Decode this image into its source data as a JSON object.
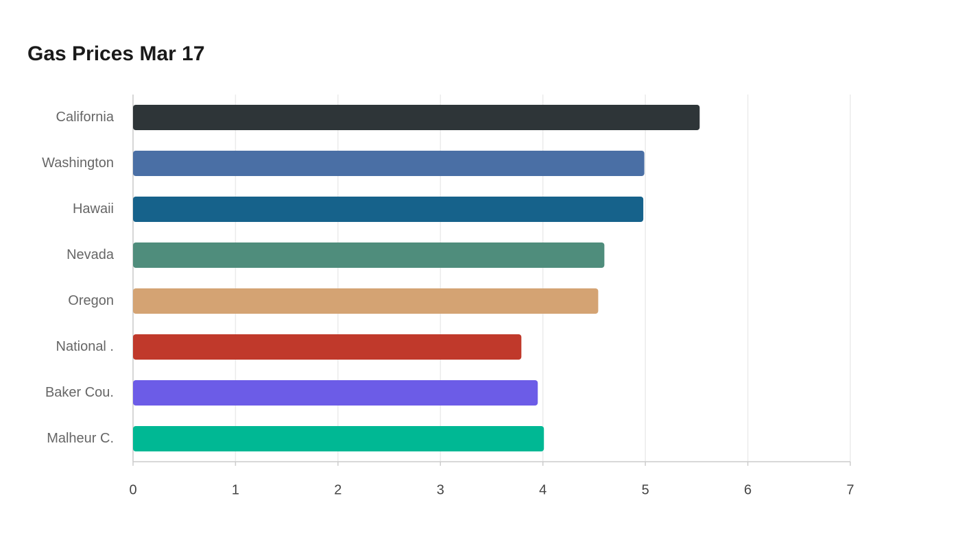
{
  "chart_data": {
    "type": "hbar",
    "title": "Gas Prices Mar 17",
    "categories": [
      "California",
      "Washington",
      "Hawaii",
      "Nevada",
      "Oregon",
      "National .",
      "Baker Cou.",
      "Malheur C."
    ],
    "values": [
      5.53,
      4.99,
      4.98,
      4.6,
      4.54,
      3.79,
      3.95,
      4.01
    ],
    "colors": [
      "#2e3538",
      "#4a6fa5",
      "#16628b",
      "#4f8d7c",
      "#d4a373",
      "#c0392b",
      "#6c5ce7",
      "#00b894"
    ],
    "xlim": [
      0,
      7
    ],
    "xticks": [
      0,
      1,
      2,
      3,
      4,
      5,
      6,
      7
    ],
    "grid": true
  }
}
